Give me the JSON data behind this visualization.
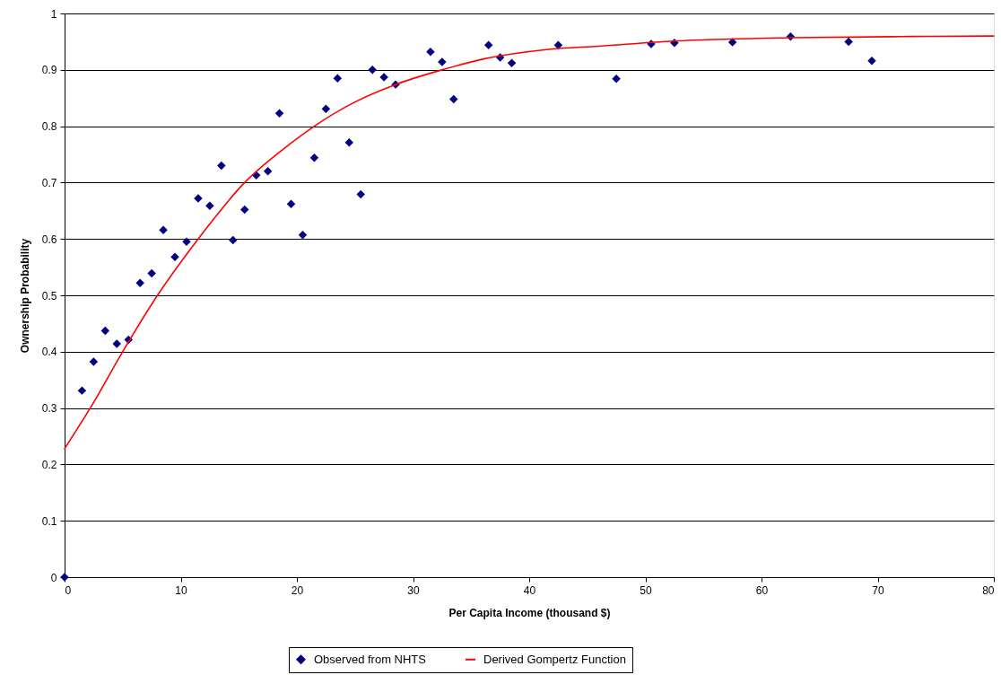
{
  "chart_data": {
    "type": "scatter",
    "xlabel": "Per Capita Income (thousand $)",
    "ylabel": "Ownership Probability",
    "xlim": [
      0,
      80
    ],
    "ylim": [
      0,
      1
    ],
    "xticks": [
      0,
      10,
      20,
      30,
      40,
      50,
      60,
      70,
      80
    ],
    "yticks": [
      0,
      0.1,
      0.2,
      0.3,
      0.4,
      0.5,
      0.6,
      0.7,
      0.8,
      0.9,
      1
    ],
    "grid": "y",
    "legend": "bottom",
    "marker": "diamond",
    "series": [
      {
        "name": "Observed from NHTS",
        "color": "#000080",
        "x": [
          0,
          1.5,
          2.5,
          3.5,
          4.5,
          5.5,
          6.5,
          7.5,
          8.5,
          9.5,
          10.5,
          11.5,
          12.5,
          13.5,
          14.5,
          15.5,
          16.5,
          17.5,
          18.5,
          19.5,
          20.5,
          21.5,
          22.5,
          23.5,
          24.5,
          25.5,
          26.5,
          27.5,
          28.5,
          31.5,
          32.5,
          33.5,
          36.5,
          37.5,
          38.5,
          42.5,
          47.5,
          50.5,
          52.5,
          57.5,
          62.5,
          67.5,
          69.5
        ],
        "values": [
          0,
          0.331,
          0.382,
          0.437,
          0.414,
          0.421,
          0.522,
          0.539,
          0.616,
          0.568,
          0.595,
          0.672,
          0.659,
          0.73,
          0.598,
          0.652,
          0.713,
          0.72,
          0.823,
          0.662,
          0.607,
          0.744,
          0.831,
          0.885,
          0.771,
          0.679,
          0.9,
          0.887,
          0.874,
          0.932,
          0.914,
          0.848,
          0.944,
          0.922,
          0.912,
          0.944,
          0.884,
          0.946,
          0.948,
          0.949,
          0.959,
          0.95,
          0.916
        ]
      },
      {
        "name": "Derived Gompertz Function",
        "color": "#ff0000",
        "type": "line",
        "marker": "none",
        "x": [
          0,
          2.5,
          5,
          8,
          11.5,
          15.5,
          19.5,
          21.5,
          25,
          28.5,
          32.5,
          36,
          41.5,
          46,
          52.5,
          62.5,
          72,
          80
        ],
        "values": [
          0.228,
          0.31,
          0.4,
          0.5,
          0.6,
          0.7,
          0.77,
          0.8,
          0.843,
          0.874,
          0.9,
          0.919,
          0.936,
          0.942,
          0.951,
          0.957,
          0.959,
          0.96
        ]
      }
    ]
  }
}
